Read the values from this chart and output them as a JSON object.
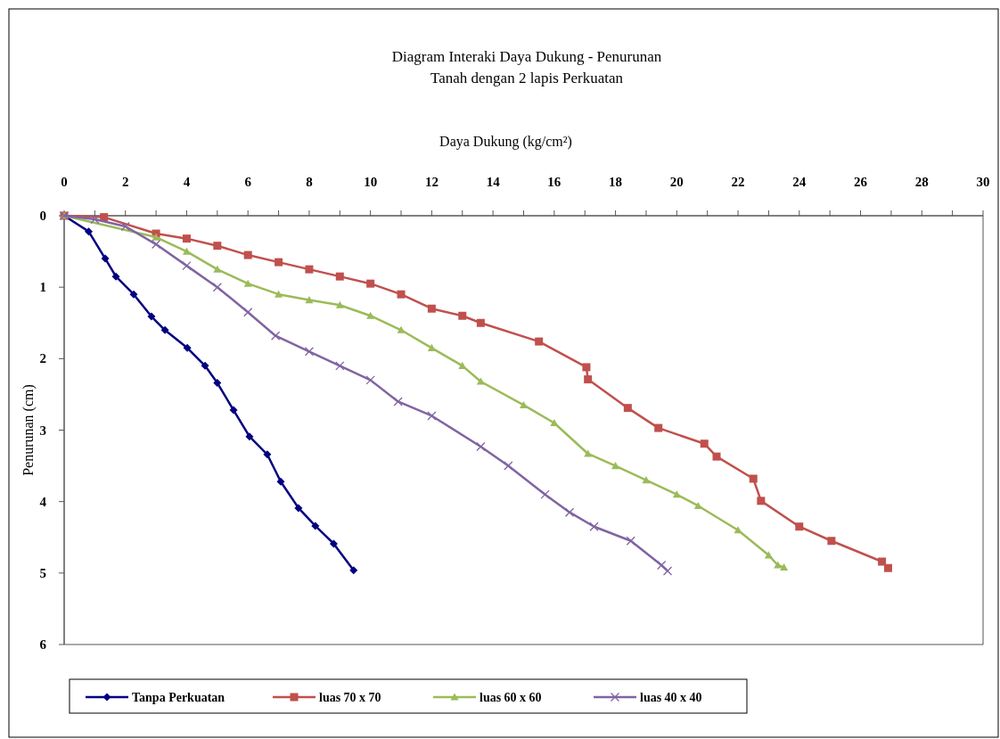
{
  "chart_data": {
    "type": "line",
    "title": "Diagram Interaki Daya Dukung - Penurunan",
    "subtitle": "Tanah dengan 2 lapis Perkuatan",
    "xlabel": "Daya Dukung (kg/cm²)",
    "ylabel": "Penurunan (cm)",
    "xlim": [
      0,
      30
    ],
    "ylim": [
      6,
      0
    ],
    "xticks": [
      0,
      {
        "value": 1,
        "label": null
      },
      2,
      {
        "value": 3,
        "label": null
      },
      4,
      {
        "value": 5,
        "label": null
      },
      6,
      {
        "value": 7,
        "label": null
      },
      8,
      {
        "value": 9,
        "label": null
      },
      10,
      {
        "value": 11,
        "label": null
      },
      12,
      {
        "value": 13,
        "label": null
      },
      14,
      {
        "value": 15,
        "label": null
      },
      16,
      {
        "value": 17,
        "label": null
      },
      18,
      {
        "value": 19,
        "label": null
      },
      20,
      {
        "value": 21,
        "label": null
      },
      22,
      {
        "value": 23,
        "label": null
      },
      24,
      {
        "value": 25,
        "label": null
      },
      26,
      {
        "value": 27,
        "label": null
      },
      28,
      {
        "value": 29,
        "label": null
      },
      30
    ],
    "yticks": [
      0,
      1,
      2,
      3,
      4,
      5,
      6
    ],
    "grid": false,
    "legend": "bottom",
    "line_style": "solid",
    "series": [
      {
        "name": "Tanpa Perkuatan",
        "color": "#000080",
        "marker": "diamond",
        "x": [
          0,
          0.8,
          1.34,
          1.69,
          2.27,
          2.85,
          3.29,
          4.02,
          4.6,
          5.0,
          5.53,
          6.05,
          6.63,
          7.07,
          7.65,
          8.2,
          8.8,
          9.45
        ],
        "values": [
          0,
          0.22,
          0.6,
          0.85,
          1.1,
          1.41,
          1.6,
          1.85,
          2.1,
          2.34,
          2.72,
          3.09,
          3.34,
          3.72,
          4.09,
          4.34,
          4.59,
          4.96
        ]
      },
      {
        "name": "luas 70 x 70",
        "color": "#c0504d",
        "marker": "square",
        "x": [
          0,
          1.3,
          3,
          4,
          5,
          6,
          7,
          8,
          9,
          10,
          11,
          12,
          13,
          13.6,
          15.5,
          17.05,
          17.1,
          18.4,
          19.4,
          20.9,
          21.3,
          22.5,
          22.75,
          24,
          25.05,
          26.7,
          26.9
        ],
        "values": [
          0,
          0.02,
          0.25,
          0.32,
          0.42,
          0.55,
          0.65,
          0.75,
          0.85,
          0.95,
          1.1,
          1.3,
          1.4,
          1.5,
          1.76,
          2.12,
          2.29,
          2.69,
          2.97,
          3.19,
          3.37,
          3.68,
          3.99,
          4.35,
          4.55,
          4.84,
          4.93
        ]
      },
      {
        "name": "luas 60 x 60",
        "color": "#9bbb59",
        "marker": "triangle",
        "x": [
          0,
          3,
          4,
          5,
          6,
          7,
          8,
          9,
          10,
          11,
          12,
          13,
          13.6,
          15,
          16,
          17.1,
          18,
          19,
          20,
          20.7,
          22,
          23,
          23.3,
          23.5
        ],
        "values": [
          0,
          0.3,
          0.5,
          0.75,
          0.95,
          1.1,
          1.18,
          1.25,
          1.4,
          1.6,
          1.85,
          2.1,
          2.32,
          2.65,
          2.9,
          3.33,
          3.5,
          3.7,
          3.9,
          4.06,
          4.4,
          4.75,
          4.89,
          4.92
        ]
      },
      {
        "name": "luas 40 x 40",
        "color": "#8064a2",
        "marker": "cross",
        "x": [
          0,
          1,
          2,
          3,
          4,
          5,
          6,
          6.9,
          8,
          9,
          10,
          10.9,
          12,
          13.6,
          14.5,
          15.7,
          16.5,
          17.3,
          18.5,
          19.5,
          19.7
        ],
        "values": [
          0,
          0.05,
          0.15,
          0.4,
          0.7,
          1.0,
          1.35,
          1.68,
          1.9,
          2.1,
          2.3,
          2.6,
          2.8,
          3.23,
          3.5,
          3.9,
          4.15,
          4.35,
          4.55,
          4.89,
          4.97
        ]
      }
    ]
  }
}
